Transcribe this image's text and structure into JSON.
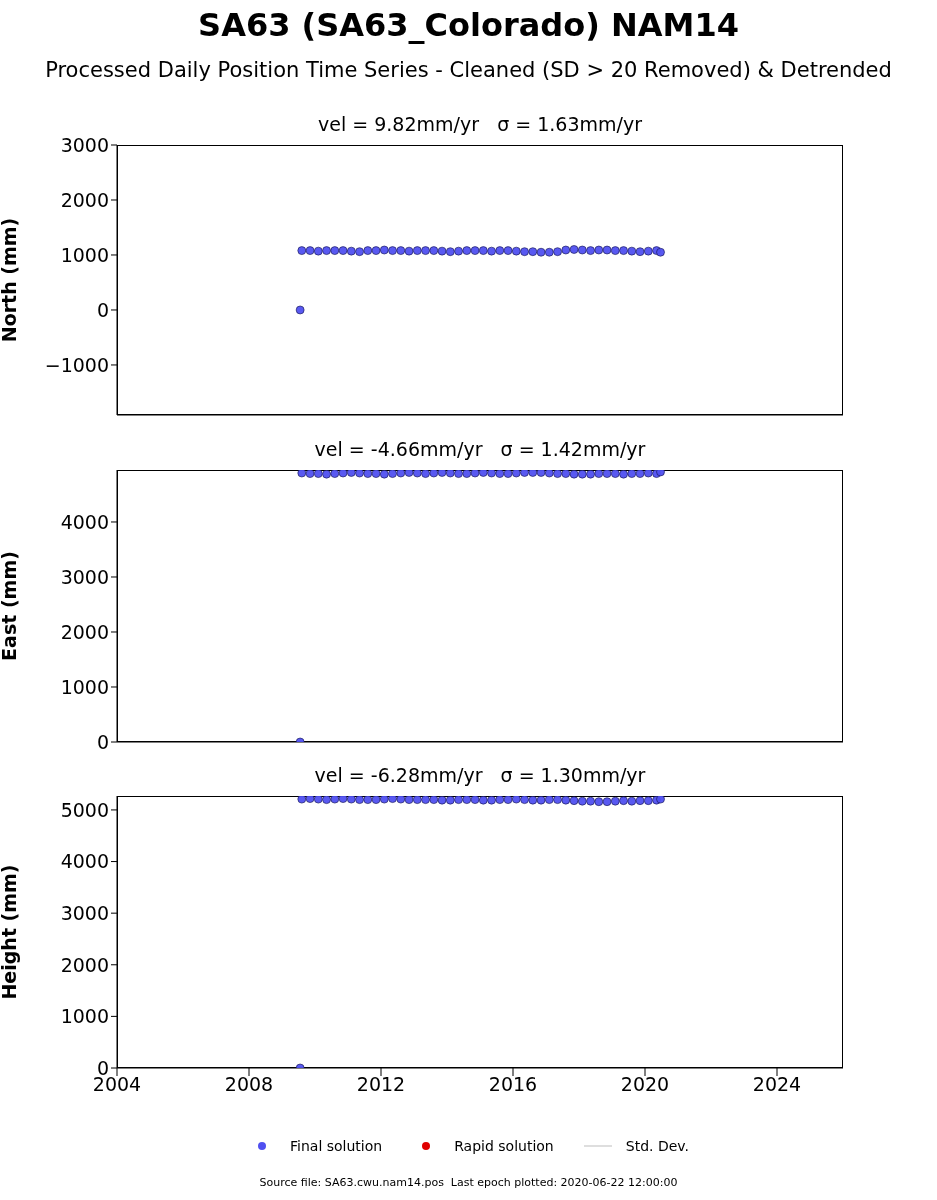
{
  "chart_data": [
    {
      "type": "scatter",
      "title": "SA63 (SA63_Colorado) NAM14",
      "subtitle": "Processed Daily Position Time Series - Cleaned (SD > 20 Removed) & Detrended",
      "annotations": [
        "vel = 9.82mm/yr   σ = 1.63mm/yr"
      ],
      "ylabel": "North (mm)",
      "marker": "circle",
      "tick_labels": "y",
      "xlim": [
        2004,
        2026
      ],
      "xticks": [
        2004,
        2008,
        2012,
        2016,
        2020,
        2024
      ],
      "ylim": [
        -1910,
        3000
      ],
      "yticks": [
        {
          "value": -1000,
          "label": "−1000"
        },
        0,
        1000,
        2000,
        3000
      ],
      "x": [
        2009.55,
        2009.6,
        2009.85,
        2010.1,
        2010.35,
        2010.6,
        2010.85,
        2011.1,
        2011.35,
        2011.6,
        2011.85,
        2012.1,
        2012.35,
        2012.6,
        2012.85,
        2013.1,
        2013.35,
        2013.6,
        2013.85,
        2014.1,
        2014.35,
        2014.6,
        2014.85,
        2015.1,
        2015.35,
        2015.6,
        2015.85,
        2016.1,
        2016.35,
        2016.6,
        2016.85,
        2017.1,
        2017.35,
        2017.6,
        2017.85,
        2018.1,
        2018.35,
        2018.6,
        2018.85,
        2019.1,
        2019.35,
        2019.6,
        2019.85,
        2020.1,
        2020.35,
        2020.47
      ],
      "series": [
        {
          "color": "#5050f0",
          "values": [
            0,
            1080,
            1080,
            1070,
            1080,
            1080,
            1080,
            1070,
            1060,
            1080,
            1080,
            1090,
            1080,
            1080,
            1070,
            1080,
            1080,
            1080,
            1070,
            1060,
            1070,
            1080,
            1080,
            1080,
            1070,
            1080,
            1080,
            1070,
            1060,
            1060,
            1050,
            1050,
            1060,
            1090,
            1100,
            1090,
            1080,
            1090,
            1090,
            1080,
            1080,
            1070,
            1060,
            1070,
            1080,
            1050
          ]
        }
      ]
    },
    {
      "type": "scatter",
      "title": "vel = -4.66mm/yr   σ = 1.42mm/yr",
      "ylabel": "East (mm)",
      "marker": "circle",
      "tick_labels": "y",
      "xlim": [
        2004,
        2026
      ],
      "xticks": [
        2004,
        2008,
        2012,
        2016,
        2020,
        2024
      ],
      "ylim": [
        0,
        4945
      ],
      "yticks": [
        0,
        1000,
        2000,
        3000,
        4000
      ],
      "x": [
        2009.55,
        2009.6,
        2009.85,
        2010.1,
        2010.35,
        2010.6,
        2010.85,
        2011.1,
        2011.35,
        2011.6,
        2011.85,
        2012.1,
        2012.35,
        2012.6,
        2012.85,
        2013.1,
        2013.35,
        2013.6,
        2013.85,
        2014.1,
        2014.35,
        2014.6,
        2014.85,
        2015.1,
        2015.35,
        2015.6,
        2015.85,
        2016.1,
        2016.35,
        2016.6,
        2016.85,
        2017.1,
        2017.35,
        2017.6,
        2017.85,
        2018.1,
        2018.35,
        2018.6,
        2018.85,
        2019.1,
        2019.35,
        2019.6,
        2019.85,
        2020.1,
        2020.35,
        2020.47
      ],
      "series": [
        {
          "color": "#5050f0",
          "values": [
            0,
            4890,
            4880,
            4880,
            4870,
            4880,
            4890,
            4900,
            4890,
            4880,
            4880,
            4870,
            4880,
            4890,
            4900,
            4890,
            4880,
            4890,
            4900,
            4890,
            4880,
            4880,
            4890,
            4900,
            4890,
            4880,
            4880,
            4890,
            4900,
            4900,
            4900,
            4890,
            4880,
            4880,
            4870,
            4870,
            4870,
            4880,
            4880,
            4880,
            4870,
            4880,
            4880,
            4890,
            4880,
            4910
          ]
        }
      ]
    },
    {
      "type": "scatter",
      "title": "vel = -6.28mm/yr   σ = 1.30mm/yr",
      "ylabel": "Height (mm)",
      "marker": "circle",
      "legend": "bottom",
      "annotations": [
        "Source file: SA63.cwu.nam14.pos  Last epoch plotted: 2020-06-22 12:00:00"
      ],
      "xlim": [
        2004,
        2026
      ],
      "xticks": [
        2004,
        2008,
        2012,
        2016,
        2020,
        2024
      ],
      "ylim": [
        0,
        5270
      ],
      "yticks": [
        0,
        1000,
        2000,
        3000,
        4000,
        5000
      ],
      "x": [
        2009.55,
        2009.6,
        2009.85,
        2010.1,
        2010.35,
        2010.6,
        2010.85,
        2011.1,
        2011.35,
        2011.6,
        2011.85,
        2012.1,
        2012.35,
        2012.6,
        2012.85,
        2013.1,
        2013.35,
        2013.6,
        2013.85,
        2014.1,
        2014.35,
        2014.6,
        2014.85,
        2015.1,
        2015.35,
        2015.6,
        2015.85,
        2016.1,
        2016.35,
        2016.6,
        2016.85,
        2017.1,
        2017.35,
        2017.6,
        2017.85,
        2018.1,
        2018.35,
        2018.6,
        2018.85,
        2019.1,
        2019.35,
        2019.6,
        2019.85,
        2020.1,
        2020.35,
        2020.47
      ],
      "series": [
        {
          "name": "Final solution",
          "color": "#5050f0",
          "values": [
            0,
            5210,
            5220,
            5210,
            5200,
            5210,
            5220,
            5210,
            5200,
            5200,
            5200,
            5210,
            5220,
            5210,
            5200,
            5200,
            5200,
            5200,
            5190,
            5190,
            5200,
            5200,
            5200,
            5190,
            5190,
            5200,
            5200,
            5210,
            5200,
            5190,
            5190,
            5200,
            5200,
            5190,
            5180,
            5170,
            5170,
            5160,
            5160,
            5170,
            5180,
            5170,
            5180,
            5180,
            5190,
            5210
          ]
        },
        {
          "name": "Rapid solution",
          "color": "#e00000",
          "values": [
            null,
            null,
            null,
            null,
            null,
            null,
            null,
            null,
            null,
            null,
            null,
            null,
            null,
            null,
            null,
            null,
            null,
            null,
            null,
            null,
            null,
            null,
            null,
            null,
            null,
            null,
            null,
            null,
            null,
            null,
            null,
            null,
            null,
            null,
            null,
            null,
            null,
            null,
            null,
            null,
            null,
            null,
            null,
            null,
            null,
            null
          ]
        },
        {
          "name": "Std. Dev.",
          "type": "line",
          "color": "#d3d3d3",
          "values": [
            null,
            null,
            null,
            null,
            null,
            null,
            null,
            null,
            null,
            null,
            null,
            null,
            null,
            null,
            null,
            null,
            null,
            null,
            null,
            null,
            null,
            null,
            null,
            null,
            null,
            null,
            null,
            null,
            null,
            null,
            null,
            null,
            null,
            null,
            null,
            null,
            null,
            null,
            null,
            null,
            null,
            null,
            null,
            null,
            null,
            null
          ]
        }
      ]
    }
  ]
}
